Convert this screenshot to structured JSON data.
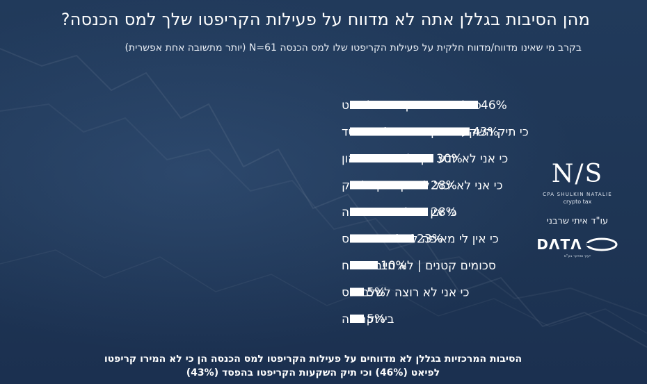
{
  "title": "מהן הסיבות בגללן אתה לא מדווח על פעילות הקריפטו שלך למס הכנסה?",
  "subtitle": "בקרב מי שאינו מדווח/מדווח חלקית על פעילות הקריפטו שלו למס הכנסה N=61 (יותר מתשובה אחת אפשרית)",
  "chart_data": {
    "type": "bar",
    "orientation": "horizontal",
    "categories": [
      "כי לא המרתי קריפטו לפיאט",
      "כי תיק השקעות הקריפטו שלי בהפסד",
      "כי אני לא יודע איך לחשב רווח הון",
      "כי אני לא יכול למשוך כסף לבנק",
      "כי אין רגולציה מתאימה",
      "כי אין לי מאיפה לשלם את המס",
      "סכומים קטנים | לא חייב בדיווח",
      "כי אני לא רוצה לשלם מס",
      "בירוקרטיה"
    ],
    "values": [
      46,
      43,
      30,
      28,
      28,
      23,
      10,
      5,
      5
    ],
    "value_labels": [
      "46%",
      "43%",
      "30%",
      "28%",
      "28%",
      "23%",
      "10%",
      "5%",
      "5%"
    ],
    "bar_color": "#ffffff",
    "xlim": [
      0,
      100
    ],
    "grid": false,
    "legend": "none"
  },
  "footer": {
    "line1": "הסיבות המרכזיות בגללן לא מדווחים על פעילות הקריפטו למס הכנסה הן כי לא המירו קריפטו",
    "line2": "לפיאט (46%) וכי תיק השקעות הקריפטו בהפסד (43%)"
  },
  "logos": {
    "ns_mark": "N/S",
    "ns_name": "CPA SHULKIN NATALIE",
    "ns_sub": "crypto tax",
    "lawyer": "עו\"ד איתי שרבני",
    "data_word": "DΛTΛ",
    "data_tagline": "ייעוץ ומחקר בע\"מ"
  },
  "colors": {
    "background": "#1e3554",
    "text": "#ffffff",
    "bar": "#ffffff"
  }
}
